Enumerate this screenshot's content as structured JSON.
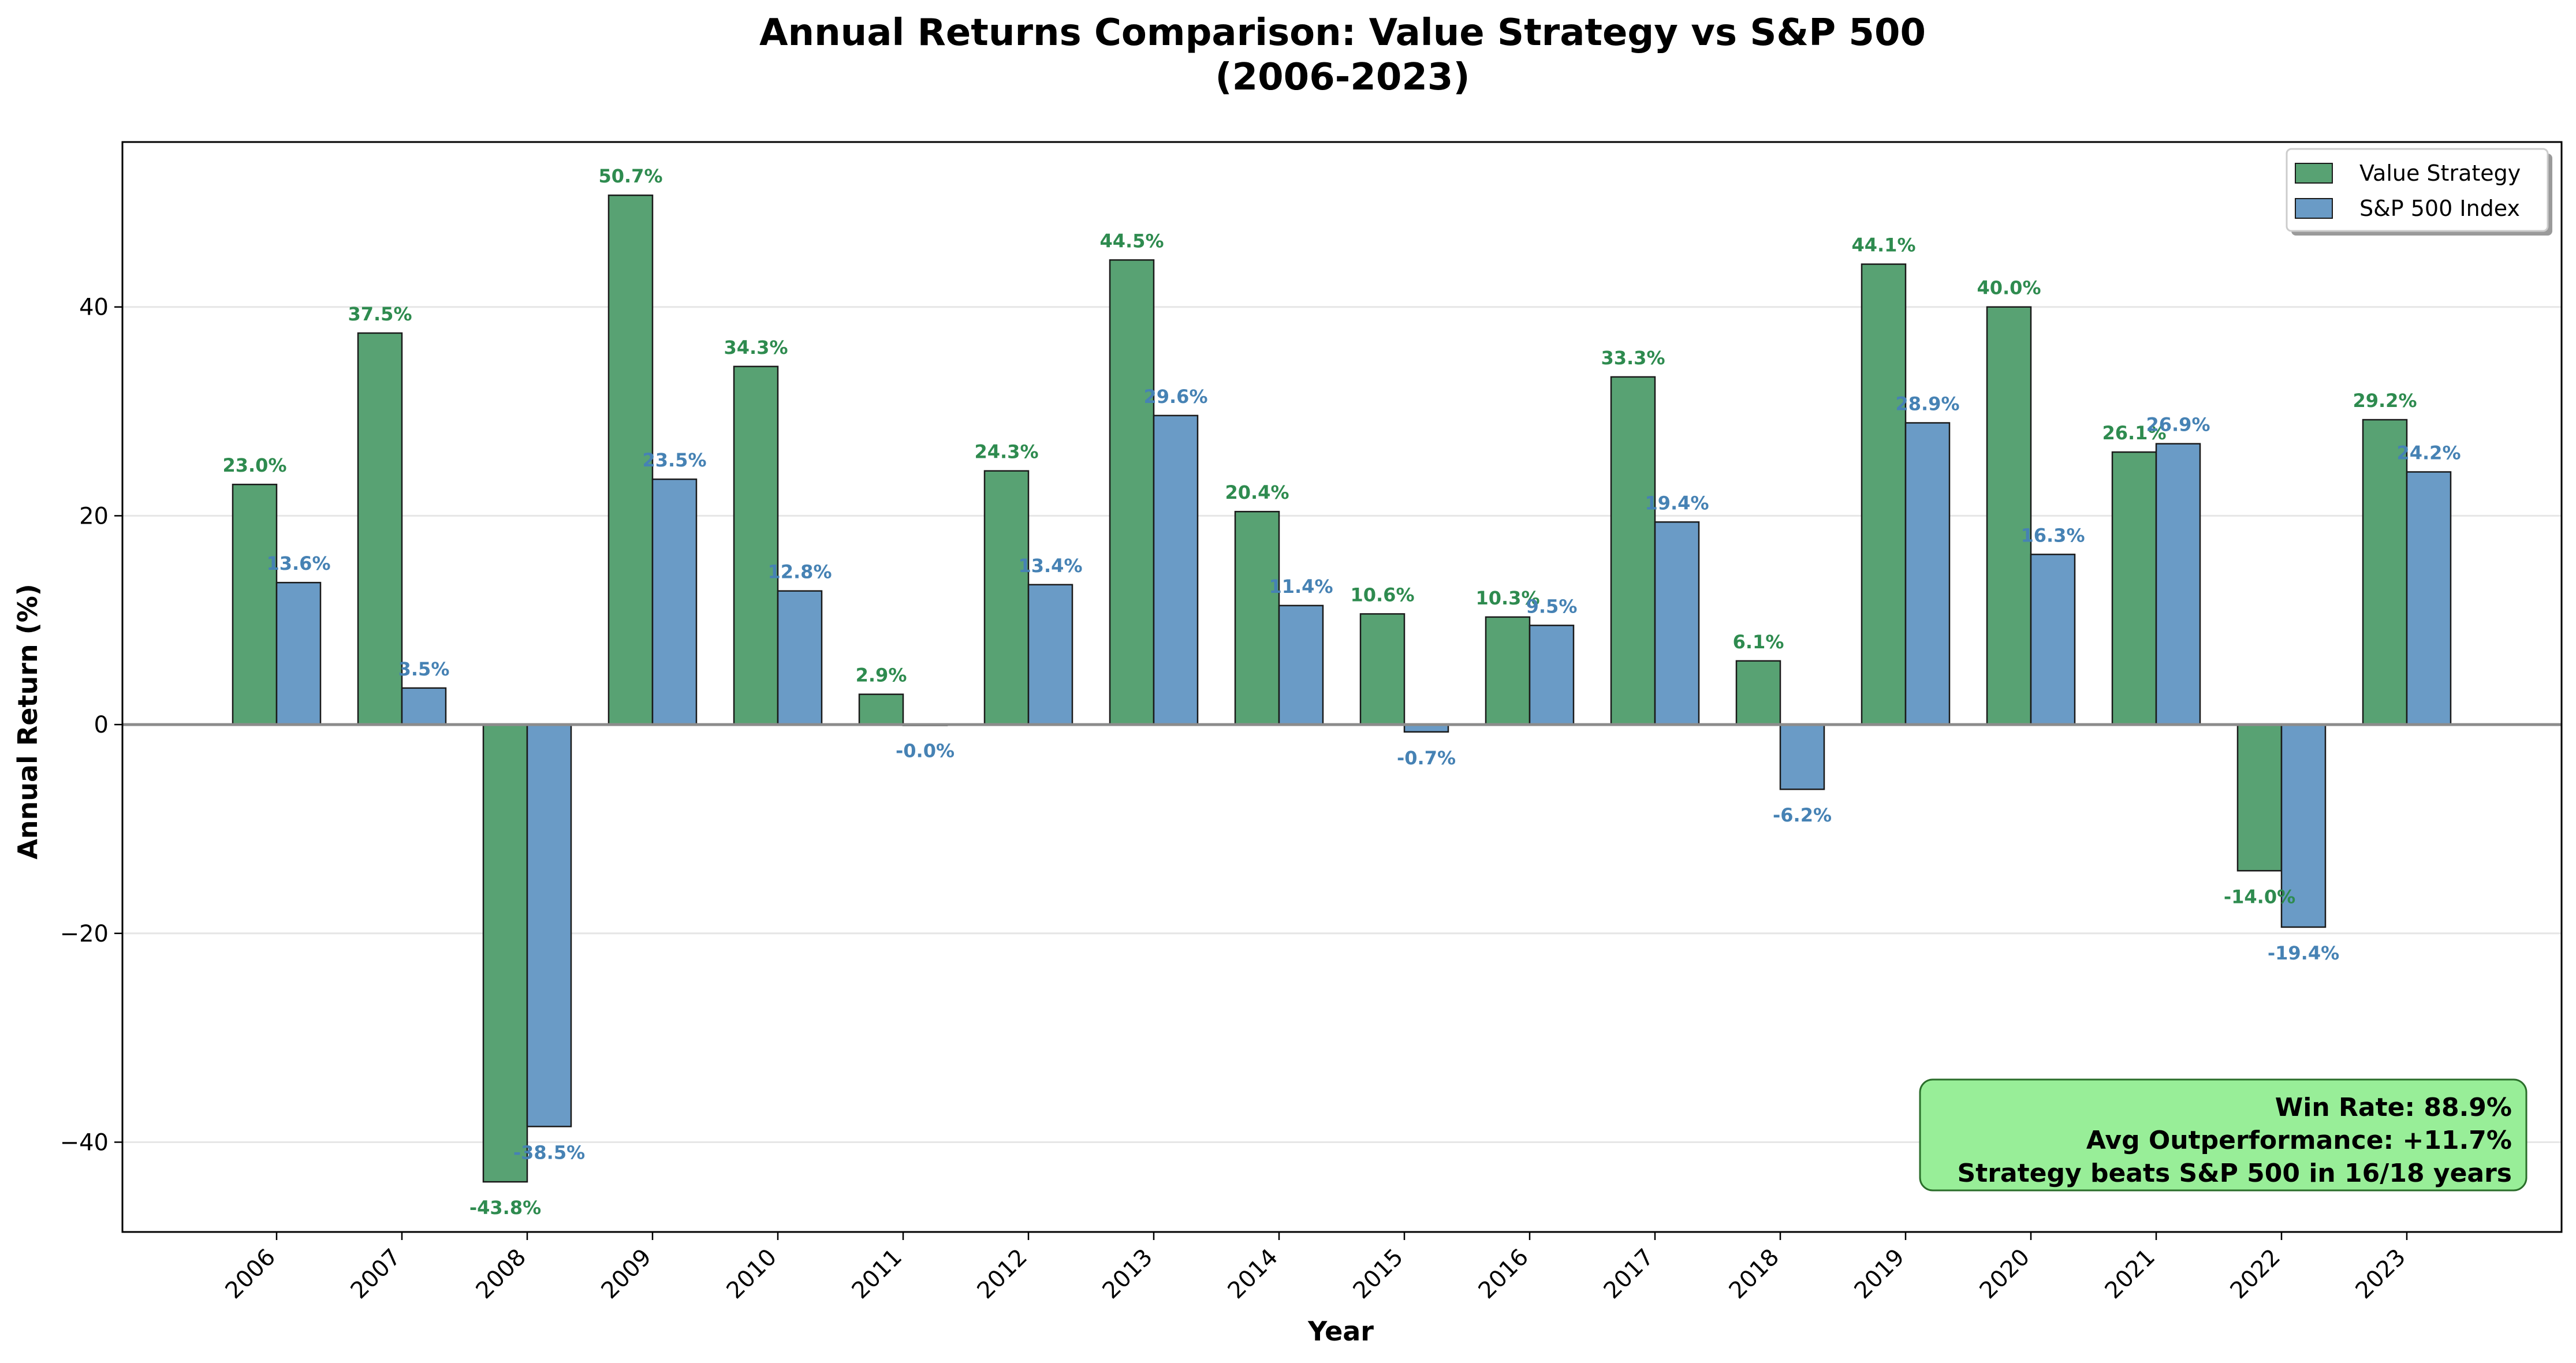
{
  "chart_data": {
    "type": "bar",
    "title_line1": "Annual Returns Comparison: Value Strategy vs S&P 500",
    "title_line2": "(2006-2023)",
    "xlabel": "Year",
    "ylabel": "Annual Return (%)",
    "ylim": [
      -48.6,
      55.8
    ],
    "yticks": [
      -40,
      -20,
      0,
      20,
      40
    ],
    "ytick_labels": [
      "−40",
      "−20",
      "0",
      "20",
      "40"
    ],
    "grid": true,
    "legend_position": "top-right",
    "categories": [
      "2006",
      "2007",
      "2008",
      "2009",
      "2010",
      "2011",
      "2012",
      "2013",
      "2014",
      "2015",
      "2016",
      "2017",
      "2018",
      "2019",
      "2020",
      "2021",
      "2022",
      "2023"
    ],
    "series": [
      {
        "name": "Value Strategy",
        "color": "#58a273",
        "label_color": "#2e8b4f",
        "values": [
          23.0,
          37.5,
          -43.8,
          50.7,
          34.3,
          2.9,
          24.3,
          44.5,
          20.4,
          10.6,
          10.3,
          33.3,
          6.1,
          44.1,
          40.0,
          26.1,
          -14.0,
          29.2
        ],
        "labels": [
          "23.0%",
          "37.5%",
          "-43.8%",
          "50.7%",
          "34.3%",
          "2.9%",
          "24.3%",
          "44.5%",
          "20.4%",
          "10.6%",
          "10.3%",
          "33.3%",
          "6.1%",
          "44.1%",
          "40.0%",
          "26.1%",
          "-14.0%",
          "29.2%"
        ]
      },
      {
        "name": "S&P 500 Index",
        "color": "#6a9bc6",
        "label_color": "#4682b4",
        "values": [
          13.6,
          3.5,
          -38.5,
          23.5,
          12.8,
          -0.03,
          13.4,
          29.6,
          11.4,
          -0.7,
          9.5,
          19.4,
          -6.2,
          28.9,
          16.3,
          26.9,
          -19.4,
          24.2
        ],
        "labels": [
          "13.6%",
          "3.5%",
          "-38.5%",
          "23.5%",
          "12.8%",
          "-0.0%",
          "13.4%",
          "29.6%",
          "11.4%",
          "-0.7%",
          "9.5%",
          "19.4%",
          "-6.2%",
          "28.9%",
          "16.3%",
          "26.9%",
          "-19.4%",
          "24.2%"
        ]
      }
    ],
    "stats_box": {
      "lines": [
        "Win Rate: 88.9%",
        "Avg Outperformance: +11.7%",
        "Strategy beats S&P 500 in 16/18 years"
      ],
      "background": "#98ee98",
      "border": "#2a6e2a"
    }
  }
}
